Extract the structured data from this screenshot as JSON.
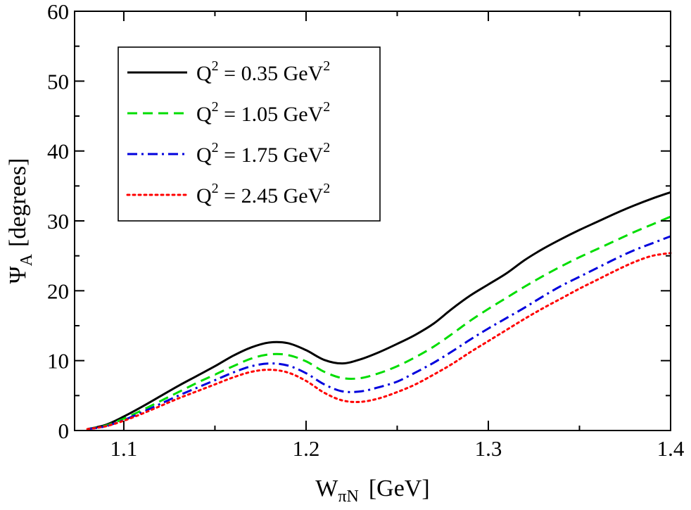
{
  "chart_data": {
    "type": "line",
    "title": "",
    "xlabel": {
      "base": "W",
      "sub": "πN",
      "unit": "[GeV]"
    },
    "ylabel": {
      "base": "Ψ",
      "sub": "A",
      "unit": "[degrees]"
    },
    "xlim": [
      1.073,
      1.4
    ],
    "ylim": [
      0,
      60
    ],
    "x_ticks": [
      "1.1",
      "1.2",
      "1.3",
      "1.4"
    ],
    "y_ticks": [
      "0",
      "10",
      "20",
      "30",
      "40",
      "50",
      "60"
    ],
    "grid": false,
    "legend_position": "top-left",
    "series": [
      {
        "name": {
          "pre": "Q",
          "sup": "2",
          "mid": " = 0.35 GeV",
          "sup2": "2"
        },
        "color": "#000000",
        "dash": "solid",
        "points": [
          [
            1.08,
            0.2
          ],
          [
            1.09,
            0.8
          ],
          [
            1.1,
            2.0
          ],
          [
            1.11,
            3.4
          ],
          [
            1.12,
            4.9
          ],
          [
            1.13,
            6.4
          ],
          [
            1.14,
            7.8
          ],
          [
            1.15,
            9.2
          ],
          [
            1.16,
            10.7
          ],
          [
            1.17,
            11.9
          ],
          [
            1.18,
            12.6
          ],
          [
            1.19,
            12.5
          ],
          [
            1.2,
            11.5
          ],
          [
            1.21,
            10.1
          ],
          [
            1.22,
            9.6
          ],
          [
            1.23,
            10.2
          ],
          [
            1.24,
            11.2
          ],
          [
            1.25,
            12.4
          ],
          [
            1.26,
            13.7
          ],
          [
            1.27,
            15.3
          ],
          [
            1.28,
            17.4
          ],
          [
            1.29,
            19.3
          ],
          [
            1.3,
            20.9
          ],
          [
            1.31,
            22.5
          ],
          [
            1.32,
            24.4
          ],
          [
            1.33,
            26.0
          ],
          [
            1.34,
            27.4
          ],
          [
            1.35,
            28.7
          ],
          [
            1.36,
            29.9
          ],
          [
            1.37,
            31.1
          ],
          [
            1.38,
            32.2
          ],
          [
            1.39,
            33.2
          ],
          [
            1.4,
            34.1
          ]
        ]
      },
      {
        "name": {
          "pre": "Q",
          "sup": "2",
          "mid": " = 1.05 GeV",
          "sup2": "2"
        },
        "color": "#00dd00",
        "dash": "dashed",
        "points": [
          [
            1.08,
            0.2
          ],
          [
            1.09,
            0.7
          ],
          [
            1.1,
            1.7
          ],
          [
            1.11,
            2.9
          ],
          [
            1.12,
            4.2
          ],
          [
            1.13,
            5.5
          ],
          [
            1.14,
            6.8
          ],
          [
            1.15,
            8.0
          ],
          [
            1.16,
            9.2
          ],
          [
            1.17,
            10.3
          ],
          [
            1.18,
            10.9
          ],
          [
            1.19,
            10.8
          ],
          [
            1.2,
            9.9
          ],
          [
            1.21,
            8.4
          ],
          [
            1.22,
            7.5
          ],
          [
            1.23,
            7.5
          ],
          [
            1.24,
            8.2
          ],
          [
            1.25,
            9.2
          ],
          [
            1.26,
            10.5
          ],
          [
            1.27,
            12.0
          ],
          [
            1.28,
            13.8
          ],
          [
            1.29,
            15.7
          ],
          [
            1.3,
            17.4
          ],
          [
            1.31,
            19.0
          ],
          [
            1.32,
            20.6
          ],
          [
            1.33,
            22.1
          ],
          [
            1.34,
            23.5
          ],
          [
            1.35,
            24.8
          ],
          [
            1.36,
            26.0
          ],
          [
            1.37,
            27.2
          ],
          [
            1.38,
            28.4
          ],
          [
            1.39,
            29.5
          ],
          [
            1.4,
            30.6
          ]
        ]
      },
      {
        "name": {
          "pre": "Q",
          "sup": "2",
          "mid": " = 1.75 GeV",
          "sup2": "2"
        },
        "color": "#0000dd",
        "dash": "dashdot",
        "points": [
          [
            1.08,
            0.2
          ],
          [
            1.09,
            0.6
          ],
          [
            1.1,
            1.5
          ],
          [
            1.11,
            2.6
          ],
          [
            1.12,
            3.8
          ],
          [
            1.13,
            5.0
          ],
          [
            1.14,
            6.1
          ],
          [
            1.15,
            7.2
          ],
          [
            1.16,
            8.3
          ],
          [
            1.17,
            9.2
          ],
          [
            1.18,
            9.6
          ],
          [
            1.19,
            9.3
          ],
          [
            1.2,
            8.2
          ],
          [
            1.21,
            6.6
          ],
          [
            1.22,
            5.6
          ],
          [
            1.23,
            5.6
          ],
          [
            1.24,
            6.2
          ],
          [
            1.25,
            7.0
          ],
          [
            1.26,
            8.3
          ],
          [
            1.27,
            9.7
          ],
          [
            1.28,
            11.3
          ],
          [
            1.29,
            13.0
          ],
          [
            1.3,
            14.6
          ],
          [
            1.31,
            16.1
          ],
          [
            1.32,
            17.6
          ],
          [
            1.33,
            19.2
          ],
          [
            1.34,
            20.7
          ],
          [
            1.35,
            22.0
          ],
          [
            1.36,
            23.3
          ],
          [
            1.37,
            24.6
          ],
          [
            1.38,
            25.8
          ],
          [
            1.39,
            26.8
          ],
          [
            1.4,
            27.8
          ]
        ]
      },
      {
        "name": {
          "pre": "Q",
          "sup": "2",
          "mid": " = 2.45 GeV",
          "sup2": "2"
        },
        "color": "#ff0000",
        "dash": "dotted",
        "points": [
          [
            1.08,
            0.2
          ],
          [
            1.09,
            0.6
          ],
          [
            1.1,
            1.4
          ],
          [
            1.11,
            2.4
          ],
          [
            1.12,
            3.5
          ],
          [
            1.13,
            4.6
          ],
          [
            1.14,
            5.6
          ],
          [
            1.15,
            6.6
          ],
          [
            1.16,
            7.6
          ],
          [
            1.17,
            8.4
          ],
          [
            1.18,
            8.7
          ],
          [
            1.19,
            8.3
          ],
          [
            1.2,
            7.1
          ],
          [
            1.21,
            5.4
          ],
          [
            1.22,
            4.3
          ],
          [
            1.23,
            4.1
          ],
          [
            1.24,
            4.6
          ],
          [
            1.25,
            5.5
          ],
          [
            1.26,
            6.6
          ],
          [
            1.27,
            8.0
          ],
          [
            1.28,
            9.5
          ],
          [
            1.29,
            11.2
          ],
          [
            1.3,
            12.8
          ],
          [
            1.31,
            14.4
          ],
          [
            1.32,
            16.0
          ],
          [
            1.33,
            17.5
          ],
          [
            1.34,
            18.9
          ],
          [
            1.35,
            20.3
          ],
          [
            1.36,
            21.6
          ],
          [
            1.37,
            22.9
          ],
          [
            1.38,
            24.1
          ],
          [
            1.39,
            25.0
          ],
          [
            1.4,
            25.4
          ]
        ]
      }
    ]
  }
}
